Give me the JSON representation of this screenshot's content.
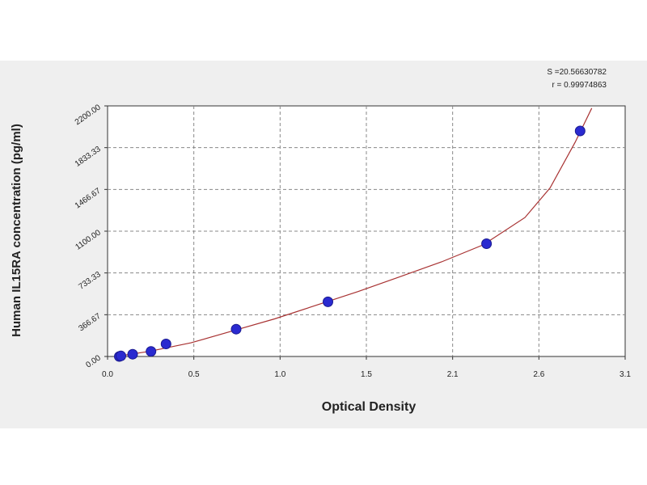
{
  "chart_data": {
    "type": "scatter",
    "title": "",
    "xlabel": "Optical Density",
    "ylabel": "Human IL15RA concentration (pg/ml)",
    "xlim": [
      0.0,
      3.1
    ],
    "ylim": [
      0.0,
      2200.0
    ],
    "x_ticks": [
      "0.0",
      "0.5",
      "1.0",
      "1.5",
      "2.1",
      "2.6",
      "3.1"
    ],
    "y_ticks": [
      "0.00",
      "366.67",
      "733.33",
      "1100.00",
      "1466.67",
      "1833.33",
      "2200.00"
    ],
    "grid": true,
    "marker_color": "#2a2ad0",
    "curve_color": "#a83232",
    "points": [
      {
        "x": 0.07,
        "y": 0
      },
      {
        "x": 0.08,
        "y": 5
      },
      {
        "x": 0.15,
        "y": 20
      },
      {
        "x": 0.26,
        "y": 45
      },
      {
        "x": 0.35,
        "y": 110
      },
      {
        "x": 0.77,
        "y": 240
      },
      {
        "x": 1.32,
        "y": 480
      },
      {
        "x": 2.27,
        "y": 990
      },
      {
        "x": 2.83,
        "y": 1980
      }
    ],
    "fit_curve": {
      "x": [
        0.05,
        0.25,
        0.5,
        0.75,
        1.0,
        1.25,
        1.5,
        1.75,
        2.0,
        2.25,
        2.5,
        2.65,
        2.8,
        2.9
      ],
      "y": [
        -10,
        45,
        120,
        225,
        330,
        450,
        570,
        700,
        830,
        980,
        1220,
        1480,
        1880,
        2180
      ]
    },
    "annotations": [
      "S =20.56630782",
      "r = 0.99974863"
    ]
  }
}
